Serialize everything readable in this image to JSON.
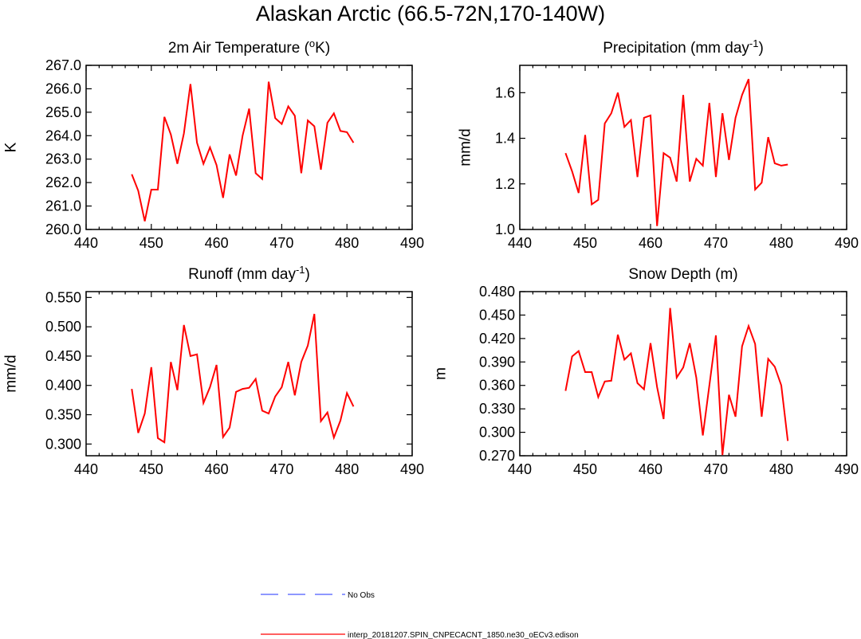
{
  "figure_title": "Alaskan Arctic (66.5-72N,170-140W)",
  "legend": {
    "obs_label": "No Obs",
    "obs_color": "#4a5aff",
    "model_label": "interp_20181207.SPIN_CNPECACNT_1850.ne30_oECv3.edison",
    "model_color": "#ff0000"
  },
  "chart_data": [
    {
      "type": "line",
      "title": "2m Air Temperature",
      "title_parts": {
        "pre": "2m Air Temperature (",
        "sup": "o",
        "post": "K)"
      },
      "ylabel": "K",
      "xlim": [
        440,
        490
      ],
      "xticks": [
        440,
        450,
        460,
        470,
        480,
        490
      ],
      "ylim": [
        260.0,
        267.0
      ],
      "yticks": [
        "260.0",
        "261.0",
        "262.0",
        "263.0",
        "264.0",
        "265.0",
        "266.0",
        "267.0"
      ],
      "x": [
        447,
        448,
        449,
        450,
        451,
        452,
        453,
        454,
        455,
        456,
        457,
        458,
        459,
        460,
        461,
        462,
        463,
        464,
        465,
        466,
        467,
        468,
        469,
        470,
        471,
        472,
        473,
        474,
        475,
        476,
        477,
        478,
        479,
        480,
        481
      ],
      "values": [
        262.35,
        261.65,
        260.35,
        261.7,
        261.7,
        264.8,
        264.05,
        262.8,
        264.1,
        266.2,
        263.7,
        262.8,
        263.5,
        262.75,
        261.35,
        263.2,
        262.3,
        264.0,
        265.15,
        262.4,
        262.15,
        266.3,
        264.75,
        264.5,
        265.25,
        264.85,
        262.4,
        264.65,
        264.4,
        262.55,
        264.55,
        264.95,
        264.2,
        264.15,
        263.7
      ]
    },
    {
      "type": "line",
      "title": "Precipitation",
      "title_parts": {
        "pre": "Precipitation (mm day",
        "sup": "-1",
        "post": ")"
      },
      "ylabel": "mm/d",
      "xlim": [
        440,
        490
      ],
      "xticks": [
        440,
        450,
        460,
        470,
        480,
        490
      ],
      "ylim": [
        1.0,
        1.72
      ],
      "yticks": [
        "1.0",
        "1.2",
        "1.4",
        "1.6"
      ],
      "x": [
        447,
        448,
        449,
        450,
        451,
        452,
        453,
        454,
        455,
        456,
        457,
        458,
        459,
        460,
        461,
        462,
        463,
        464,
        465,
        466,
        467,
        468,
        469,
        470,
        471,
        472,
        473,
        474,
        475,
        476,
        477,
        478,
        479,
        480,
        481
      ],
      "values": [
        1.335,
        1.255,
        1.16,
        1.415,
        1.11,
        1.13,
        1.465,
        1.51,
        1.6,
        1.45,
        1.48,
        1.23,
        1.49,
        1.5,
        1.015,
        1.335,
        1.315,
        1.21,
        1.59,
        1.21,
        1.31,
        1.28,
        1.555,
        1.23,
        1.51,
        1.305,
        1.49,
        1.59,
        1.66,
        1.175,
        1.205,
        1.405,
        1.29,
        1.28,
        1.285
      ]
    },
    {
      "type": "line",
      "title": "Runoff",
      "title_parts": {
        "pre": "Runoff (mm day",
        "sup": "-1",
        "post": ")"
      },
      "ylabel": "mm/d",
      "xlim": [
        440,
        490
      ],
      "xticks": [
        440,
        450,
        460,
        470,
        480,
        490
      ],
      "ylim": [
        0.28,
        0.56
      ],
      "yticks": [
        "0.300",
        "0.350",
        "0.400",
        "0.450",
        "0.500",
        "0.550"
      ],
      "x": [
        447,
        448,
        449,
        450,
        451,
        452,
        453,
        454,
        455,
        456,
        457,
        458,
        459,
        460,
        461,
        462,
        463,
        464,
        465,
        466,
        467,
        468,
        469,
        470,
        471,
        472,
        473,
        474,
        475,
        476,
        477,
        478,
        479,
        480,
        481
      ],
      "values": [
        0.394,
        0.319,
        0.352,
        0.431,
        0.31,
        0.303,
        0.44,
        0.392,
        0.503,
        0.45,
        0.453,
        0.37,
        0.397,
        0.435,
        0.312,
        0.328,
        0.389,
        0.394,
        0.396,
        0.411,
        0.357,
        0.352,
        0.381,
        0.397,
        0.44,
        0.383,
        0.44,
        0.468,
        0.522,
        0.339,
        0.354,
        0.311,
        0.34,
        0.387,
        0.364
      ]
    },
    {
      "type": "line",
      "title": "Snow Depth",
      "title_parts": {
        "pre": "Snow Depth (m)",
        "sup": "",
        "post": ""
      },
      "ylabel": "m",
      "xlim": [
        440,
        490
      ],
      "xticks": [
        440,
        450,
        460,
        470,
        480,
        490
      ],
      "ylim": [
        0.27,
        0.48
      ],
      "yticks": [
        "0.270",
        "0.300",
        "0.330",
        "0.360",
        "0.390",
        "0.420",
        "0.450",
        "0.480"
      ],
      "x": [
        447,
        448,
        449,
        450,
        451,
        452,
        453,
        454,
        455,
        456,
        457,
        458,
        459,
        460,
        461,
        462,
        463,
        464,
        465,
        466,
        467,
        468,
        469,
        470,
        471,
        472,
        473,
        474,
        475,
        476,
        477,
        478,
        479,
        480,
        481
      ],
      "values": [
        0.353,
        0.397,
        0.404,
        0.377,
        0.377,
        0.345,
        0.365,
        0.366,
        0.425,
        0.393,
        0.401,
        0.363,
        0.355,
        0.414,
        0.358,
        0.317,
        0.459,
        0.37,
        0.383,
        0.414,
        0.37,
        0.296,
        0.36,
        0.424,
        0.271,
        0.348,
        0.32,
        0.41,
        0.436,
        0.413,
        0.32,
        0.394,
        0.384,
        0.36,
        0.289
      ]
    }
  ]
}
